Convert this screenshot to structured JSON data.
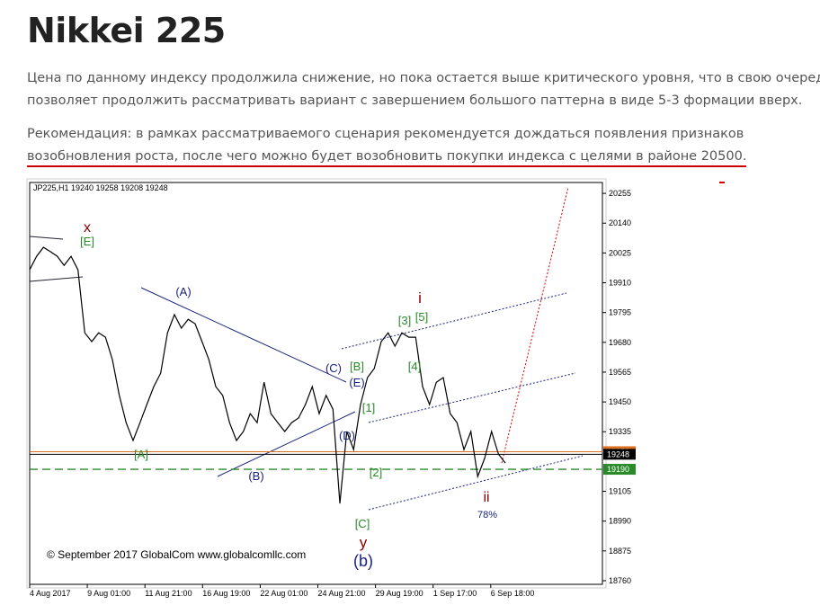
{
  "header": {
    "title": "Nikkei 225"
  },
  "paragraphs": [
    [
      "Цена по данному индексу продолжила снижение, но пока остается выше критического уровня, что в свою очередь",
      "позволяет продолжить рассматривать вариант с завершением большого паттерна в виде 5-3 формации вверх."
    ],
    [
      "Рекомендация:  в рамках рассматриваемого сценария рекомендуется дождаться появления признаков",
      "возобновления роста, после чего можно будет возобновить покупки индекса с целями в районе 20500."
    ]
  ],
  "chart_data": {
    "type": "line",
    "info": "JP225,H1  19240 19258 19208 19248",
    "copyright": "© September 2017 GlobalCom www.globalcomllc.com",
    "x_tick_labels": [
      "4 Aug 2017",
      "9 Aug 01:00",
      "11 Aug 21:00",
      "16 Aug 19:00",
      "22 Aug 01:00",
      "24 Aug 21:00",
      "29 Aug 19:00",
      "1 Sep 17:00",
      "6 Sep 18:00"
    ],
    "values": [
      19960,
      20012,
      20047,
      20030,
      20012,
      19977,
      20012,
      19960,
      19717,
      19683,
      19717,
      19700,
      19613,
      19475,
      19370,
      19301,
      19370,
      19440,
      19509,
      19561,
      19717,
      19787,
      19735,
      19769,
      19752,
      19683,
      19613,
      19509,
      19475,
      19370,
      19301,
      19336,
      19405,
      19370,
      19526,
      19405,
      19370,
      19336,
      19370,
      19388,
      19440,
      19509,
      19405,
      19475,
      19422,
      19058,
      19336,
      19266,
      19440,
      19544,
      19579,
      19683,
      19717,
      19665,
      19717,
      19700,
      19700,
      19509,
      19440,
      19526,
      19544,
      19405,
      19370,
      19266,
      19336,
      19162,
      19232,
      19336,
      19249,
      19214
    ],
    "color": "#000000",
    "ylim": [
      18746,
      20297
    ],
    "yticks": [
      18760,
      18875,
      18990,
      19105,
      19335,
      19450,
      19565,
      19680,
      19795,
      19910,
      20025,
      20140,
      20255
    ],
    "price_markers": [
      {
        "value": 19258,
        "color": "#e07020",
        "style": "solid"
      },
      {
        "value": 19248,
        "color": "#000000",
        "style": "solid"
      },
      {
        "value": 19190,
        "color": "#2a8a2a",
        "style": "dashed"
      }
    ],
    "annotations": [
      "x",
      "[E]",
      "(A)",
      "[A]",
      "(B)",
      "(C)",
      "[B]",
      "(E)",
      "(D)",
      "[1]",
      "[2]",
      "[C]",
      "y",
      "(b)",
      "[3]",
      "i",
      "[5]",
      "[4]",
      "ii",
      "78%"
    ]
  }
}
